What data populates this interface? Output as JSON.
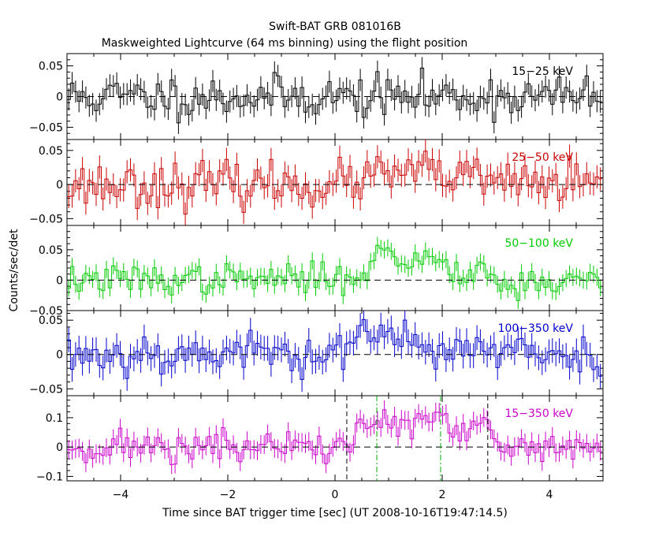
{
  "title": "Swift-BAT GRB 081016B",
  "subtitle": "Maskweighted Lightcurve (64 ms binning) using the flight position",
  "xlabel": "Time since BAT trigger time [sec] (UT 2008-10-16T19:47:14.5)",
  "ylabel": "Counts/sec/det",
  "colors": {
    "frame": "#000000",
    "panel_15_25": "#000000",
    "panel_25_50": "#cc0000",
    "panel_50_100": "#00cc00",
    "panel_100_350": "#0000cc",
    "panel_15_350": "#cc00cc",
    "green_marker": "#00aa00"
  },
  "chart_data": {
    "type": "line",
    "xlim": [
      -5,
      5
    ],
    "xticks": [
      -4,
      -2,
      0,
      2,
      4
    ],
    "xtick_labels": [
      "−4",
      "−2",
      "0",
      "2",
      "4"
    ],
    "vertical_markers": {
      "black_dashed": [
        0.22,
        2.85
      ],
      "green_dashdot": [
        0.78,
        1.97
      ]
    },
    "panels": [
      {
        "id": "15_25",
        "label": "15−25 keV",
        "ylim": [
          -0.07,
          0.07
        ],
        "yticks": [
          0.05,
          0,
          -0.05
        ],
        "ytick_labels": [
          "0.05",
          "0",
          "−0.05"
        ],
        "show_markers": false,
        "profile": [
          [
            -5.0,
            0.0
          ],
          [
            5.0,
            0.0
          ]
        ],
        "noise": 0.017,
        "err": 0.018,
        "seed": 11
      },
      {
        "id": "25_50",
        "label": "25−50 keV",
        "ylim": [
          -0.06,
          0.066
        ],
        "yticks": [
          0.05,
          0,
          -0.05
        ],
        "ytick_labels": [
          "0.05",
          "0",
          "−0.05"
        ],
        "show_markers": false,
        "profile": [
          [
            -5.0,
            0.0
          ],
          [
            0.2,
            0.0
          ],
          [
            0.5,
            0.008
          ],
          [
            1.3,
            0.018
          ],
          [
            2.0,
            0.014
          ],
          [
            3.0,
            0.004
          ],
          [
            5.0,
            0.0
          ]
        ],
        "noise": 0.016,
        "err": 0.017,
        "seed": 23
      },
      {
        "id": "50_100",
        "label": "50−100 keV",
        "ylim": [
          -0.05,
          0.09
        ],
        "yticks": [
          0.05,
          0,
          -0.05
        ],
        "ytick_labels": [
          "0.05",
          "0",
          "−0.05"
        ],
        "show_markers": false,
        "profile": [
          [
            -5.0,
            0.0
          ],
          [
            -1.0,
            0.002
          ],
          [
            0.2,
            0.003
          ],
          [
            0.6,
            0.02
          ],
          [
            0.9,
            0.048
          ],
          [
            1.3,
            0.03
          ],
          [
            1.9,
            0.038
          ],
          [
            2.3,
            0.012
          ],
          [
            2.8,
            0.022
          ],
          [
            3.1,
            -0.012
          ],
          [
            3.6,
            -0.004
          ],
          [
            5.0,
            0.0
          ]
        ],
        "noise": 0.012,
        "err": 0.014,
        "seed": 37
      },
      {
        "id": "100_350",
        "label": "100−350 keV",
        "ylim": [
          -0.06,
          0.064
        ],
        "yticks": [
          0.05,
          0,
          -0.05
        ],
        "ytick_labels": [
          "0.05",
          "0",
          "−0.05"
        ],
        "show_markers": false,
        "profile": [
          [
            -5.0,
            0.0
          ],
          [
            0.0,
            0.004
          ],
          [
            0.3,
            0.018
          ],
          [
            0.8,
            0.026
          ],
          [
            1.6,
            0.016
          ],
          [
            2.6,
            0.006
          ],
          [
            3.0,
            0.002
          ],
          [
            5.0,
            0.0
          ]
        ],
        "noise": 0.015,
        "err": 0.018,
        "seed": 53
      },
      {
        "id": "15_350",
        "label": "15−350 keV",
        "ylim": [
          -0.115,
          0.175
        ],
        "yticks": [
          0.1,
          0,
          -0.1
        ],
        "ytick_labels": [
          "0.1",
          "0",
          "−0.1"
        ],
        "show_markers": true,
        "profile": [
          [
            -5.0,
            0.0
          ],
          [
            0.2,
            0.0
          ],
          [
            0.4,
            0.045
          ],
          [
            0.8,
            0.095
          ],
          [
            1.2,
            0.075
          ],
          [
            1.5,
            0.07
          ],
          [
            1.9,
            0.105
          ],
          [
            2.3,
            0.04
          ],
          [
            2.8,
            0.065
          ],
          [
            3.1,
            -0.005
          ],
          [
            5.0,
            0.0
          ]
        ],
        "noise": 0.028,
        "err": 0.032,
        "seed": 71
      }
    ]
  }
}
